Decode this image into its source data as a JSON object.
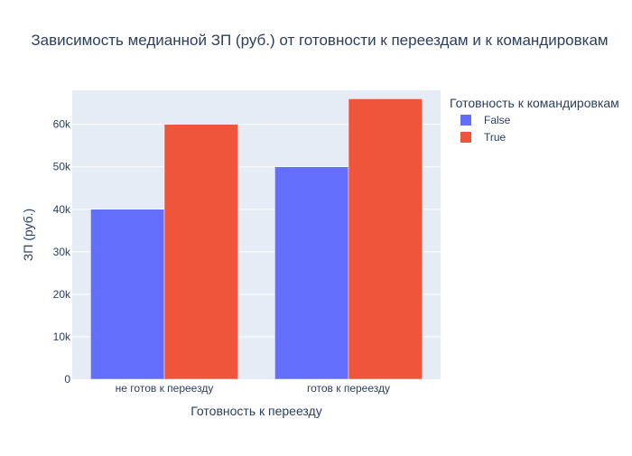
{
  "chart_data": {
    "type": "bar",
    "title": "Зависимость медианной ЗП (руб.) от готовности к переездам и к командировкам",
    "xlabel": "Готовность к переезду",
    "ylabel": "ЗП (руб.)",
    "categories": [
      "не готов к переезду",
      "готов к переезду"
    ],
    "series": [
      {
        "name": "False",
        "values": [
          40000,
          50000
        ],
        "color": "#636efa"
      },
      {
        "name": "True",
        "values": [
          60000,
          66000
        ],
        "color": "#ef553b"
      }
    ],
    "ylim": [
      0,
      68000
    ],
    "yticks": [
      0,
      10000,
      20000,
      30000,
      40000,
      50000,
      60000
    ],
    "ytick_labels": [
      "0",
      "10k",
      "20k",
      "30k",
      "40k",
      "50k",
      "60k"
    ],
    "legend_title": "Готовность к командировкам",
    "legend_position": "top-right",
    "grid": true,
    "plot_bg": "#e5ecf6"
  }
}
